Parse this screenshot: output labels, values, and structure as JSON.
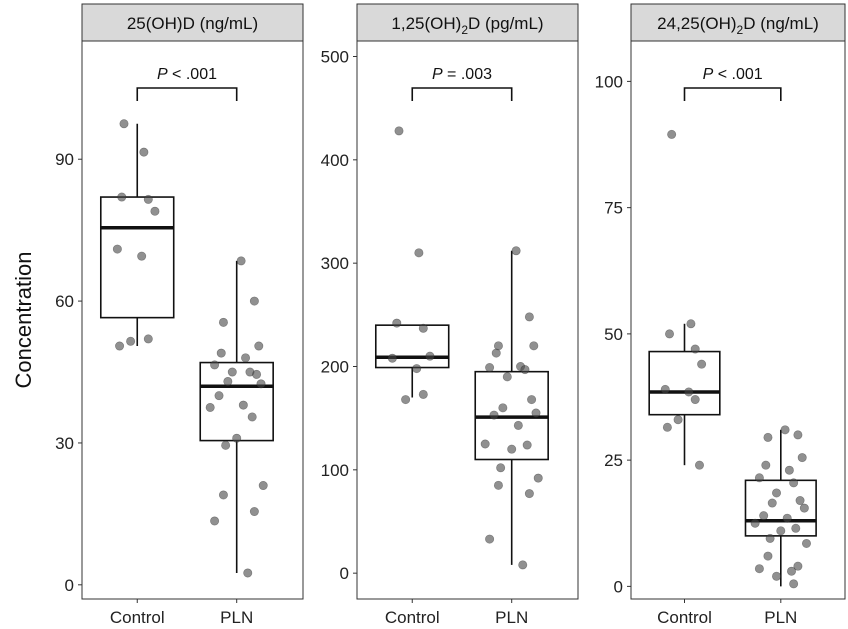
{
  "chart_data": [
    {
      "type": "box",
      "title": "25(OH)D (ng/mL)",
      "ylabel": "Concentration",
      "ylim": [
        -3,
        115
      ],
      "yticks": [
        0,
        30,
        60,
        90
      ],
      "categories": [
        "Control",
        "PLN"
      ],
      "pvalue": {
        "letter": "P",
        "text": " < .001"
      },
      "boxes": [
        {
          "category": "Control",
          "q1": 56.5,
          "median": 75.5,
          "q3": 82,
          "whisker_low": 50.5,
          "whisker_high": 97.5
        },
        {
          "category": "PLN",
          "q1": 30.5,
          "median": 42,
          "q3": 47,
          "whisker_low": 2.5,
          "whisker_high": 68.5
        }
      ],
      "points": [
        {
          "category": "Control",
          "values": [
            97.5,
            91.5,
            82,
            81.5,
            79,
            71,
            69.5,
            52,
            51.5,
            50.5
          ]
        },
        {
          "category": "PLN",
          "values": [
            68.5,
            60,
            55.5,
            50.5,
            49,
            48,
            46.5,
            45,
            45,
            44.5,
            43,
            42.5,
            40,
            38,
            37.5,
            35.5,
            31,
            29.5,
            21,
            19,
            15.5,
            13.5,
            2.5
          ]
        }
      ]
    },
    {
      "type": "box",
      "title_parts": [
        "1,25(OH)",
        "2",
        "D (pg/mL)"
      ],
      "ylim": [
        -25,
        515
      ],
      "yticks": [
        0,
        100,
        200,
        300,
        400,
        500
      ],
      "categories": [
        "Control",
        "PLN"
      ],
      "pvalue": {
        "letter": "P",
        "text": " = .003"
      },
      "boxes": [
        {
          "category": "Control",
          "q1": 199,
          "median": 209,
          "q3": 240,
          "whisker_low": 170,
          "whisker_high": 240
        },
        {
          "category": "PLN",
          "q1": 110,
          "median": 151,
          "q3": 195,
          "whisker_low": 8,
          "whisker_high": 312
        }
      ],
      "points": [
        {
          "category": "Control",
          "values": [
            428,
            310,
            242,
            237,
            210,
            208,
            198,
            173,
            168
          ]
        },
        {
          "category": "PLN",
          "values": [
            312,
            248,
            220,
            220,
            213,
            200,
            199,
            197,
            190,
            168,
            160,
            155,
            153,
            143,
            125,
            124,
            120,
            102,
            92,
            85,
            77,
            33,
            8
          ]
        }
      ]
    },
    {
      "type": "box",
      "title_parts": [
        "24,25(OH)",
        "2",
        "D (ng/mL)"
      ],
      "ylim": [
        -2.5,
        108
      ],
      "yticks": [
        0,
        25,
        50,
        75,
        100
      ],
      "categories": [
        "Control",
        "PLN"
      ],
      "pvalue": {
        "letter": "P",
        "text": " < .001"
      },
      "boxes": [
        {
          "category": "Control",
          "q1": 34,
          "median": 38.5,
          "q3": 46.5,
          "whisker_low": 24,
          "whisker_high": 52
        },
        {
          "category": "PLN",
          "q1": 10,
          "median": 13,
          "q3": 21,
          "whisker_low": 0,
          "whisker_high": 31
        }
      ],
      "points": [
        {
          "category": "Control",
          "values": [
            89.5,
            52,
            50,
            47,
            44,
            39,
            38.5,
            37,
            33,
            31.5,
            24
          ]
        },
        {
          "category": "PLN",
          "values": [
            31,
            30,
            29.5,
            25.5,
            24,
            23,
            21.5,
            20.5,
            18.5,
            17,
            16.5,
            15.5,
            14,
            13.5,
            12.5,
            11.5,
            11,
            9.5,
            8.5,
            6,
            4,
            3.5,
            3,
            2,
            0.5
          ]
        }
      ]
    }
  ]
}
